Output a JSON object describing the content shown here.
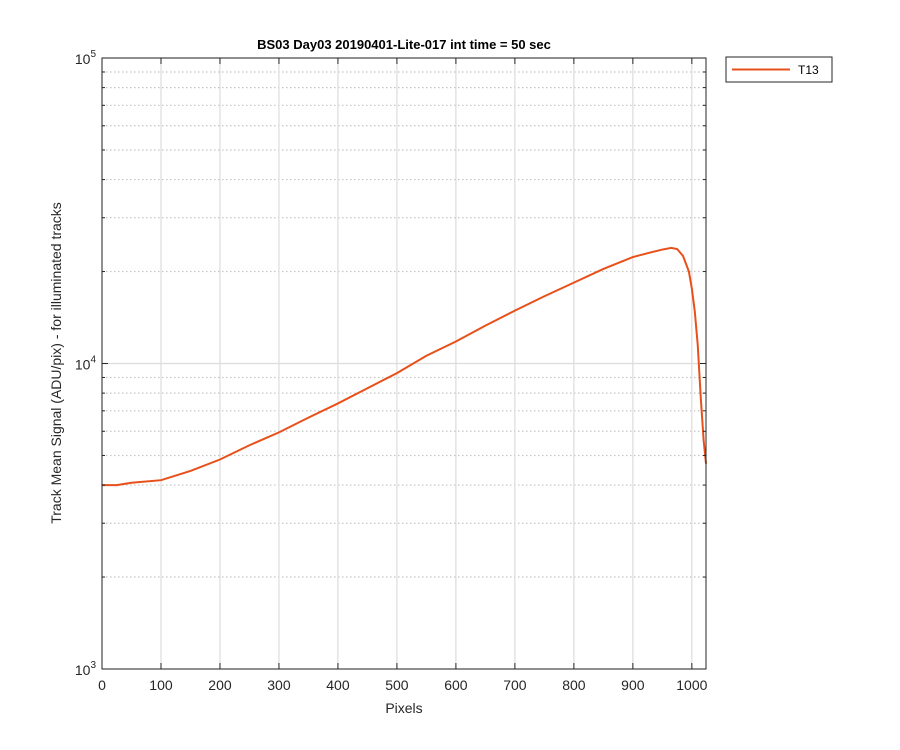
{
  "chart_data": {
    "type": "line",
    "title": "BS03 Day03 20190401-Lite-017 int time = 50 sec",
    "xlabel": "Pixels",
    "ylabel": "Track Mean Signal (ADU/pix) - for illuminated tracks",
    "xlim": [
      0,
      1024
    ],
    "ylim": [
      1000,
      100000
    ],
    "yscale": "log",
    "grid": true,
    "minor_grid": true,
    "legend_position": "outside-top-right",
    "x_ticks": [
      "0",
      "100",
      "200",
      "300",
      "400",
      "500",
      "600",
      "700",
      "800",
      "900",
      "1000"
    ],
    "y_ticks": [
      {
        "base": "10",
        "exp": "3"
      },
      {
        "base": "10",
        "exp": "4"
      },
      {
        "base": "10",
        "exp": "5"
      }
    ],
    "series": [
      {
        "name": "T13",
        "color": "#e8501a",
        "x": [
          0,
          25,
          50,
          100,
          150,
          200,
          250,
          300,
          350,
          400,
          450,
          500,
          550,
          600,
          650,
          700,
          750,
          800,
          850,
          900,
          930,
          950,
          965,
          975,
          985,
          995,
          1000,
          1005,
          1010,
          1015,
          1020,
          1024
        ],
        "y": [
          4000,
          4000,
          4070,
          4150,
          4450,
          4850,
          5400,
          5950,
          6650,
          7400,
          8300,
          9300,
          10600,
          11800,
          13300,
          14900,
          16600,
          18400,
          20400,
          22300,
          23100,
          23600,
          23900,
          23700,
          22500,
          20000,
          17600,
          14800,
          11500,
          7800,
          5600,
          4700
        ]
      }
    ]
  }
}
